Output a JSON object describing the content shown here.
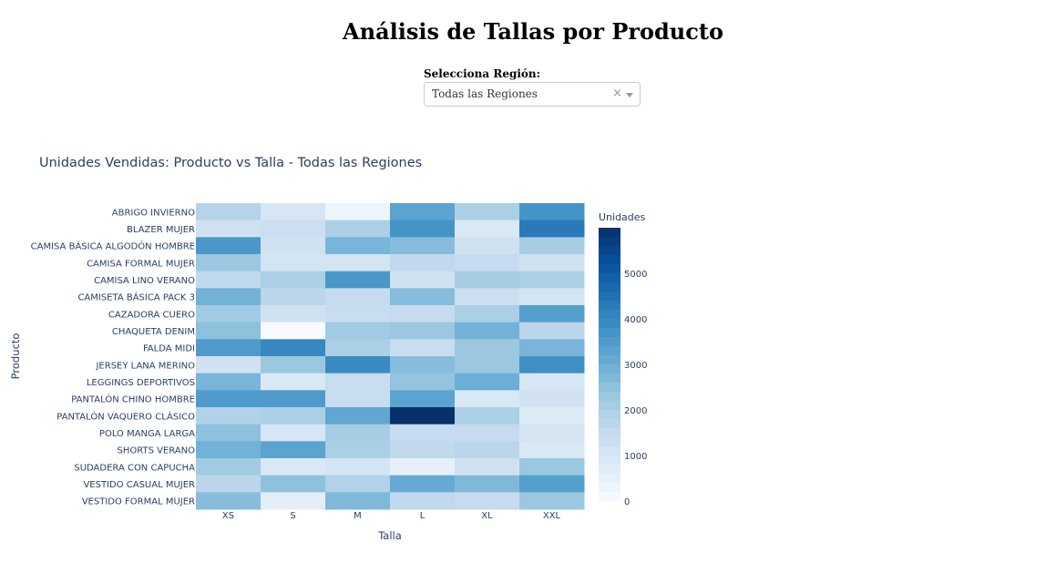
{
  "page": {
    "title": "Análisis de Tallas por Producto",
    "region_label": "Selecciona Región:",
    "region_selected": "Todas las Regiones",
    "clear_glyph": "×"
  },
  "chart_data": {
    "type": "heatmap",
    "title": "Unidades Vendidas: Producto vs Talla - Todas las Regiones",
    "xlabel": "Talla",
    "ylabel": "Producto",
    "x": [
      "XS",
      "S",
      "M",
      "L",
      "XL",
      "XXL"
    ],
    "y": [
      "ABRIGO INVIERNO",
      "BLAZER MUJER",
      "CAMISA BÁSICA ALGODÓN HOMBRE",
      "CAMISA FORMAL MUJER",
      "CAMISA LINO VERANO",
      "CAMISETA BÁSICA PACK 3",
      "CAZADORA CUERO",
      "CHAQUETA DENIM",
      "FALDA MIDI",
      "JERSEY LANA MERINO",
      "LEGGINGS DEPORTIVOS",
      "PANTALÓN CHINO HOMBRE",
      "PANTALÓN VAQUERO CLÁSICO",
      "POLO MANGA LARGA",
      "SHORTS VERANO",
      "SUDADERA CON CAPUCHA",
      "VESTIDO CASUAL MUJER",
      "VESTIDO FORMAL MUJER"
    ],
    "z": [
      [
        1800,
        1000,
        300,
        3300,
        2000,
        3700
      ],
      [
        1200,
        1300,
        2000,
        3700,
        900,
        4300
      ],
      [
        3600,
        1200,
        2800,
        2600,
        1200,
        2100
      ],
      [
        2300,
        1100,
        1100,
        1600,
        1500,
        1200
      ],
      [
        1600,
        2000,
        3600,
        1200,
        2100,
        2000
      ],
      [
        2900,
        1700,
        1500,
        2600,
        1300,
        1100
      ],
      [
        2200,
        1200,
        1400,
        1500,
        2000,
        3400
      ],
      [
        2500,
        0,
        2200,
        2300,
        2900,
        1700
      ],
      [
        3500,
        4000,
        2000,
        1400,
        2300,
        2800
      ],
      [
        1200,
        2300,
        3900,
        2600,
        2300,
        3800
      ],
      [
        2800,
        900,
        1400,
        2400,
        3000,
        1000
      ],
      [
        3500,
        3500,
        1400,
        3300,
        900,
        1200
      ],
      [
        1900,
        2000,
        3200,
        6000,
        2000,
        800
      ],
      [
        2500,
        1000,
        2100,
        1500,
        1500,
        1100
      ],
      [
        2900,
        3300,
        2000,
        1600,
        1700,
        900
      ],
      [
        2200,
        900,
        1100,
        500,
        1200,
        2300
      ],
      [
        1700,
        2500,
        1900,
        3100,
        2700,
        3400
      ],
      [
        2600,
        600,
        2700,
        1600,
        1500,
        2300
      ]
    ],
    "zmin": 0,
    "zmax": 6000,
    "colorbar_title": "Unidades",
    "colorbar_ticks": [
      0,
      1000,
      2000,
      3000,
      4000,
      5000
    ],
    "colorscale": [
      "#f7fbff",
      "#deebf7",
      "#c6dbef",
      "#9ecae1",
      "#6baed6",
      "#4292c6",
      "#2171b5",
      "#08519c",
      "#08306b"
    ]
  }
}
